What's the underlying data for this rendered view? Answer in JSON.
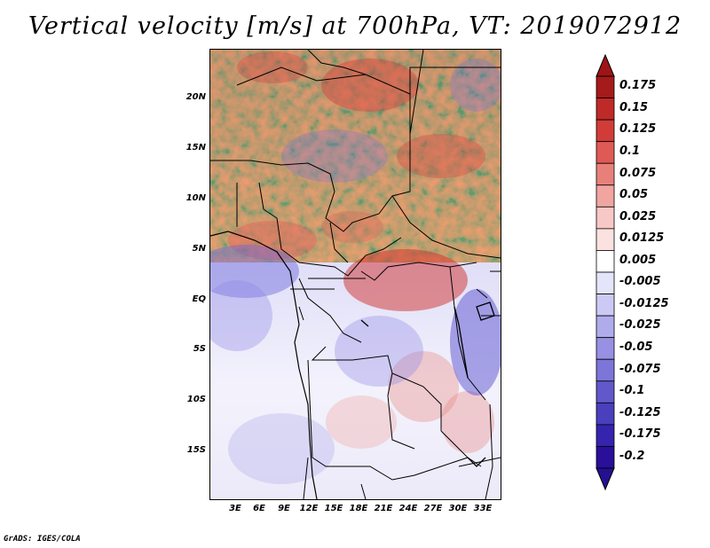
{
  "title": "Vertical velocity [m/s] at 700hPa, VT: 2019072912",
  "footer": "GrADS: IGES/COLA",
  "axes": {
    "y_labels": [
      "20N",
      "15N",
      "10N",
      "5N",
      "EQ",
      "5S",
      "10S",
      "15S"
    ],
    "x_labels": [
      "3E",
      "6E",
      "9E",
      "12E",
      "15E",
      "18E",
      "21E",
      "24E",
      "27E",
      "30E",
      "33E"
    ]
  },
  "colorbar": {
    "labels": [
      "0.175",
      "0.15",
      "0.125",
      "0.1",
      "0.075",
      "0.05",
      "0.025",
      "0.0125",
      "0.005",
      "-0.005",
      "-0.0125",
      "-0.025",
      "-0.05",
      "-0.075",
      "-0.1",
      "-0.125",
      "-0.175",
      "-0.2"
    ],
    "colors": [
      "#a51a1a",
      "#be2a28",
      "#d23c38",
      "#e05a55",
      "#e8807a",
      "#f0a5a0",
      "#f7c8c5",
      "#fbe2e0",
      "#ffffff",
      "#e4e4fa",
      "#cccaf5",
      "#b0acec",
      "#9890e3",
      "#7d75d8",
      "#6258cb",
      "#4a3fbd",
      "#3524ad",
      "#2a0f9a"
    ],
    "top_color": "#9e1515",
    "bottom_color": "#25108f"
  },
  "map": {
    "rising_color": "#dd4a44",
    "sinking_color": "#5a5ae0",
    "neutral_color": "#ffffff",
    "border_color": "#000000"
  }
}
